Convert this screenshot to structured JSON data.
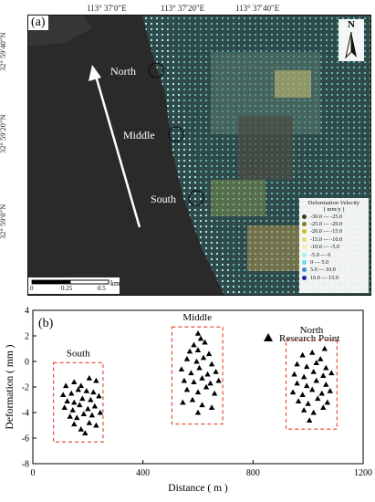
{
  "panel_a": {
    "label": "(a)",
    "lon_ticks": [
      "113° 37′0″E",
      "113° 37′20″E",
      "113° 37′40″E"
    ],
    "lat_ticks": [
      "32° 59′40″N",
      "32° 59′20″N",
      "32° 59′0″N"
    ],
    "places": [
      "North",
      "Middle",
      "South"
    ],
    "north_letter": "N",
    "scale_ticks": [
      "0",
      "0.25",
      "0.5"
    ],
    "scale_unit": "km",
    "legend": {
      "title": "Deformation Velocity\n( mm/y )",
      "entries": [
        {
          "label": "-30.0 — -25.0",
          "color": "#3a3a1a"
        },
        {
          "label": "-25.0 — -20.0",
          "color": "#8a7a20"
        },
        {
          "label": "-20.0 — -15.0",
          "color": "#c8b830"
        },
        {
          "label": "-15.0 — -10.0",
          "color": "#e8dc60"
        },
        {
          "label": "-10.0 — -5.0",
          "color": "#f2ecb0"
        },
        {
          "label": "-5.0 — 0",
          "color": "#a8f0ec"
        },
        {
          "label": "0 — 5.0",
          "color": "#66d8e8"
        },
        {
          "label": "5.0 — 10.0",
          "color": "#3a8ad8"
        },
        {
          "label": "10.0 — 15.0",
          "color": "#1a2aa8"
        }
      ]
    }
  },
  "chart_data": {
    "type": "scatter",
    "panel_label": "(b)",
    "xlabel": "Distance ( m )",
    "ylabel": "Deformation ( mm )",
    "xlim": [
      0,
      1200
    ],
    "ylim": [
      -8,
      4
    ],
    "xticks": [
      "0",
      "400",
      "800",
      "1200"
    ],
    "yticks": [
      "-8",
      "-6",
      "-4",
      "-2",
      "0",
      "2",
      "4"
    ],
    "legend": "Research Point",
    "groups": [
      {
        "label": "South",
        "box": {
          "x": [
            75,
            255
          ],
          "y": [
            -6.3,
            -0.1
          ]
        },
        "points": [
          [
            120,
            -1.9
          ],
          [
            150,
            -1.6
          ],
          [
            175,
            -1.9
          ],
          [
            205,
            -1.3
          ],
          [
            230,
            -1.5
          ],
          [
            110,
            -2.6
          ],
          [
            140,
            -2.5
          ],
          [
            165,
            -2.2
          ],
          [
            195,
            -2.3
          ],
          [
            220,
            -2.4
          ],
          [
            125,
            -3.1
          ],
          [
            150,
            -3.2
          ],
          [
            180,
            -2.9
          ],
          [
            210,
            -3.0
          ],
          [
            240,
            -2.7
          ],
          [
            115,
            -3.6
          ],
          [
            145,
            -3.8
          ],
          [
            170,
            -3.4
          ],
          [
            200,
            -3.7
          ],
          [
            225,
            -3.5
          ],
          [
            135,
            -4.3
          ],
          [
            160,
            -4.4
          ],
          [
            185,
            -4.1
          ],
          [
            215,
            -4.2
          ],
          [
            245,
            -4.0
          ],
          [
            150,
            -4.9
          ],
          [
            175,
            -5.3
          ],
          [
            205,
            -4.8
          ],
          [
            230,
            -5.0
          ],
          [
            190,
            -5.6
          ]
        ]
      },
      {
        "label": "Middle",
        "box": {
          "x": [
            505,
            690
          ],
          "y": [
            -4.9,
            2.7
          ]
        },
        "points": [
          [
            600,
            2.2
          ],
          [
            610,
            1.8
          ],
          [
            585,
            1.3
          ],
          [
            625,
            1.5
          ],
          [
            570,
            0.8
          ],
          [
            600,
            0.9
          ],
          [
            640,
            0.6
          ],
          [
            560,
            0.2
          ],
          [
            595,
            0.0
          ],
          [
            620,
            0.3
          ],
          [
            650,
            -0.2
          ],
          [
            540,
            -0.6
          ],
          [
            575,
            -0.9
          ],
          [
            605,
            -0.5
          ],
          [
            635,
            -1.0
          ],
          [
            665,
            -0.8
          ],
          [
            550,
            -1.5
          ],
          [
            585,
            -1.6
          ],
          [
            615,
            -1.3
          ],
          [
            645,
            -1.7
          ],
          [
            675,
            -1.5
          ],
          [
            560,
            -2.2
          ],
          [
            600,
            -2.4
          ],
          [
            630,
            -2.0
          ],
          [
            660,
            -2.5
          ],
          [
            545,
            -3.2
          ],
          [
            580,
            -3.0
          ],
          [
            615,
            -3.4
          ],
          [
            650,
            -3.6
          ],
          [
            600,
            -4.0
          ]
        ]
      },
      {
        "label": "North",
        "box": {
          "x": [
            920,
            1105
          ],
          "y": [
            -5.3,
            1.7
          ]
        },
        "points": [
          [
            1060,
            1.0
          ],
          [
            980,
            0.5
          ],
          [
            1015,
            0.7
          ],
          [
            1045,
            0.2
          ],
          [
            960,
            -0.2
          ],
          [
            995,
            -0.4
          ],
          [
            1030,
            -0.1
          ],
          [
            1065,
            -0.5
          ],
          [
            950,
            -1.0
          ],
          [
            985,
            -1.2
          ],
          [
            1020,
            -0.8
          ],
          [
            1055,
            -1.1
          ],
          [
            1085,
            -0.9
          ],
          [
            960,
            -1.7
          ],
          [
            995,
            -1.9
          ],
          [
            1030,
            -1.5
          ],
          [
            1065,
            -1.8
          ],
          [
            945,
            -2.4
          ],
          [
            980,
            -2.6
          ],
          [
            1015,
            -2.2
          ],
          [
            1050,
            -2.5
          ],
          [
            1080,
            -2.3
          ],
          [
            965,
            -3.1
          ],
          [
            1000,
            -3.3
          ],
          [
            1035,
            -2.9
          ],
          [
            1070,
            -3.2
          ],
          [
            985,
            -3.8
          ],
          [
            1020,
            -4.0
          ],
          [
            1055,
            -3.6
          ],
          [
            1005,
            -4.6
          ]
        ]
      }
    ]
  }
}
